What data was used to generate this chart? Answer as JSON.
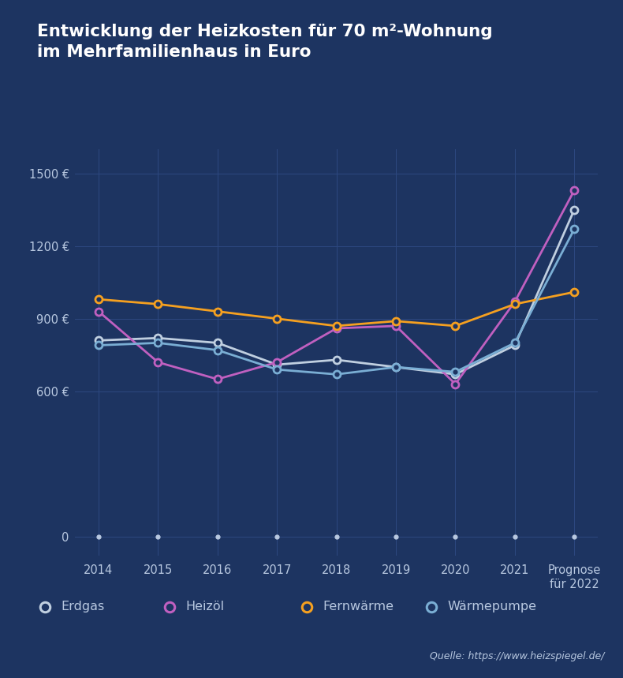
{
  "title_line1": "Entwicklung der Heizkosten für 70 m²-Wohnung",
  "title_line2": "im Mehrfamilienhaus in Euro",
  "background_color": "#1d3461",
  "grid_color": "#2d4880",
  "text_color": "#b8c8e0",
  "source_text": "Quelle: https://www.heizspiegel.de/",
  "x_labels": [
    "2014",
    "2015",
    "2016",
    "2017",
    "2018",
    "2019",
    "2020",
    "2021",
    "Prognose\nfür 2022"
  ],
  "x_values": [
    0,
    1,
    2,
    3,
    4,
    5,
    6,
    7,
    8
  ],
  "yticks": [
    0,
    600,
    900,
    1200,
    1500
  ],
  "ytick_labels": [
    "0",
    "600 €",
    "900 €",
    "1200 €",
    "1500 €"
  ],
  "ylim_min": -80,
  "ylim_max": 1600,
  "series": {
    "Erdgas": {
      "color": "#c0cfe0",
      "values": [
        810,
        820,
        800,
        710,
        730,
        700,
        670,
        790,
        1350
      ]
    },
    "Heizöl": {
      "color": "#c060c0",
      "values": [
        930,
        720,
        650,
        720,
        860,
        870,
        630,
        970,
        1430
      ]
    },
    "Fernwärme": {
      "color": "#f5a020",
      "values": [
        980,
        960,
        930,
        900,
        870,
        890,
        870,
        960,
        1010
      ]
    },
    "Wärmepumpe": {
      "color": "#7aaed4",
      "values": [
        790,
        800,
        770,
        690,
        670,
        700,
        680,
        800,
        1270
      ]
    }
  },
  "legend_order": [
    "Erdgas",
    "Heizöl",
    "Fernwärme",
    "Wärmepumpe"
  ]
}
